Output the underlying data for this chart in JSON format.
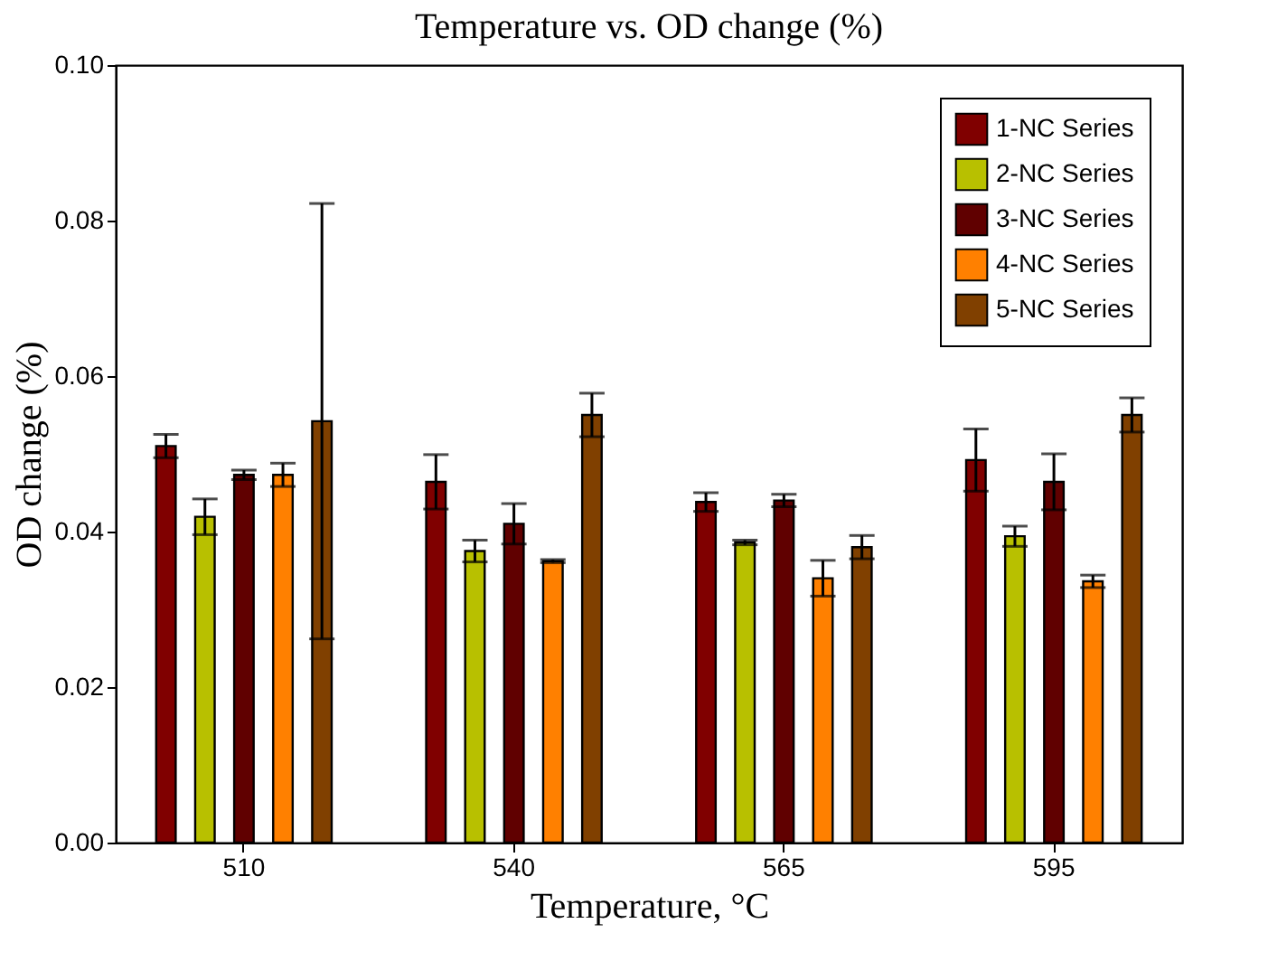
{
  "chart_data": {
    "type": "bar",
    "title": "Temperature vs. OD change (%)",
    "xlabel": "Temperature, °C",
    "ylabel": "OD change (%)",
    "categories": [
      "510",
      "540",
      "565",
      "595"
    ],
    "series": [
      {
        "name": "1-NC Series",
        "color": "#800000",
        "values": [
          0.051,
          0.0464,
          0.0438,
          0.0492
        ],
        "errors": [
          0.0015,
          0.0035,
          0.0012,
          0.004
        ]
      },
      {
        "name": "2-NC Series",
        "color": "#b8c000",
        "values": [
          0.0419,
          0.0375,
          0.0386,
          0.0394
        ],
        "errors": [
          0.0023,
          0.0014,
          0.0003,
          0.0013
        ]
      },
      {
        "name": "3-NC Series",
        "color": "#600000",
        "values": [
          0.0473,
          0.041,
          0.044,
          0.0464
        ],
        "errors": [
          0.0006,
          0.0026,
          0.0008,
          0.0036
        ]
      },
      {
        "name": "4-NC Series",
        "color": "#ff8000",
        "values": [
          0.0473,
          0.0362,
          0.034,
          0.0336
        ],
        "errors": [
          0.0015,
          0.0002,
          0.0023,
          0.0008
        ]
      },
      {
        "name": "5-NC Series",
        "color": "#804000",
        "values": [
          0.0542,
          0.055,
          0.038,
          0.055
        ],
        "errors": [
          0.028,
          0.0028,
          0.0015,
          0.0022
        ]
      }
    ],
    "ylim": [
      0,
      0.1
    ],
    "yticks": [
      {
        "value": 0,
        "label": "0.00"
      },
      {
        "value": 0.02,
        "label": "0.02"
      },
      {
        "value": 0.04,
        "label": "0.04"
      },
      {
        "value": 0.06,
        "label": "0.06"
      },
      {
        "value": 0.08,
        "label": "0.08"
      },
      {
        "value": 0.1,
        "label": "0.10"
      }
    ],
    "legend": "top right",
    "grid": false
  }
}
